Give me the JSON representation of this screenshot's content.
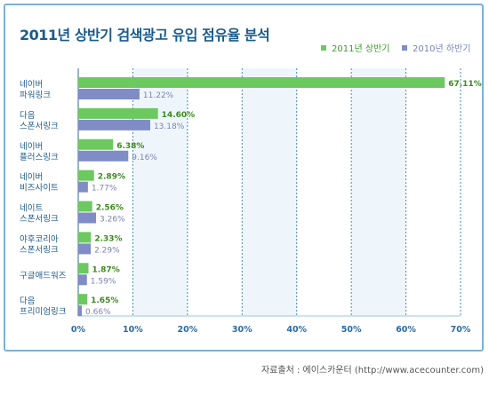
{
  "chart_data": {
    "type": "bar",
    "orientation": "horizontal",
    "title": "2011년 상반기 검색광고 유입 점유율 분석",
    "categories": [
      [
        "네이버",
        "파워링크"
      ],
      [
        "다음",
        "스폰서링크"
      ],
      [
        "네이버",
        "플러스링크"
      ],
      [
        "네이버",
        "비즈사이트"
      ],
      [
        "네이트",
        "스폰서링크"
      ],
      [
        "야후코리아",
        "스폰서링크"
      ],
      [
        "구글애드워즈"
      ],
      [
        "다음",
        "프리미엄링크"
      ]
    ],
    "series": [
      {
        "name": "2011년 상반기",
        "values": [
          67.11,
          14.6,
          6.38,
          2.89,
          2.56,
          2.33,
          1.87,
          1.65
        ],
        "labels": [
          "67.11%",
          "14.60%",
          "6.38%",
          "2.89%",
          "2.56%",
          "2.33%",
          "1.87%",
          "1.65%"
        ],
        "color": "#6cc95f"
      },
      {
        "name": "2010년 하반기",
        "values": [
          11.22,
          13.18,
          9.16,
          1.77,
          3.26,
          2.29,
          1.59,
          0.66
        ],
        "labels": [
          "11.22%",
          "13.18%",
          "9.16%",
          "1.77%",
          "3.26%",
          "2.29%",
          "1.59%",
          "0.66%"
        ],
        "color": "#7f8cc6"
      }
    ],
    "xlim": [
      0,
      70
    ],
    "xticks": [
      "0%",
      "10%",
      "20%",
      "30%",
      "40%",
      "50%",
      "60%",
      "70%"
    ],
    "grid": true,
    "legend_position": "top-right"
  },
  "source": "자료출처 : 에이스카운터 (http://www.acecounter.com)",
  "colors": {
    "frame": "#79b2d6",
    "title": "#1b5c8c",
    "axis": "#2b6aa3",
    "band": "#eef6fb"
  }
}
